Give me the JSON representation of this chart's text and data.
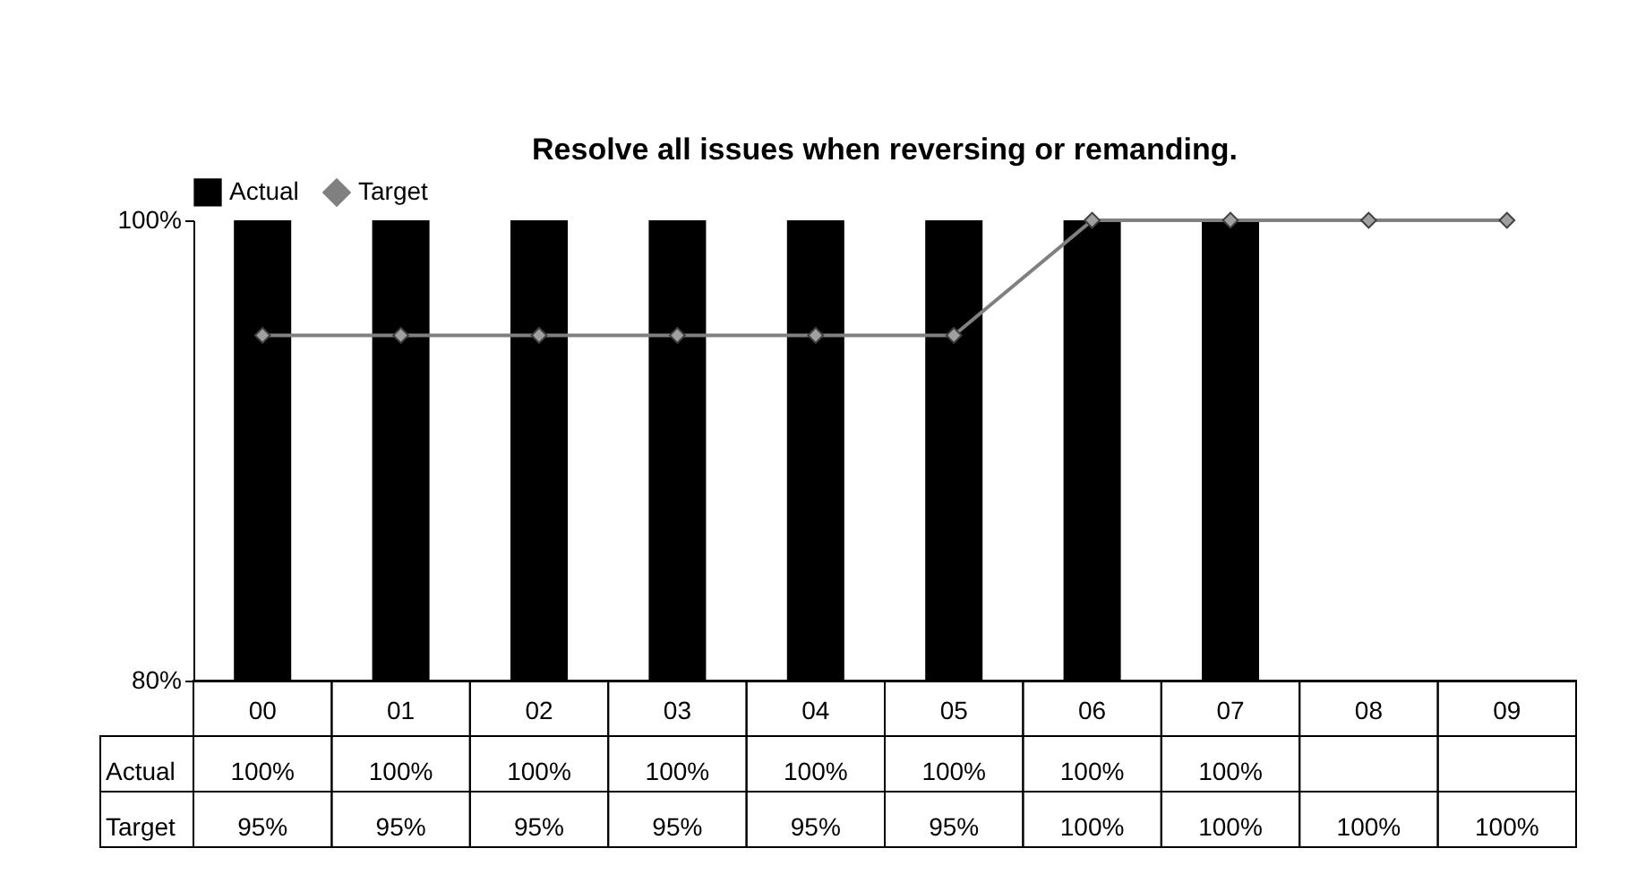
{
  "chart_data": {
    "type": "bar",
    "title": "Resolve all issues when reversing or remanding.",
    "categories": [
      "00",
      "01",
      "02",
      "03",
      "04",
      "05",
      "06",
      "07",
      "08",
      "09"
    ],
    "series": [
      {
        "name": "Actual",
        "type": "bar",
        "color": "#000000",
        "values": [
          100,
          100,
          100,
          100,
          100,
          100,
          100,
          100,
          null,
          null
        ],
        "value_labels": [
          "100%",
          "100%",
          "100%",
          "100%",
          "100%",
          "100%",
          "100%",
          "100%",
          null,
          null
        ]
      },
      {
        "name": "Target",
        "type": "line",
        "color": "#808080",
        "marker": "diamond",
        "values": [
          95,
          95,
          95,
          95,
          95,
          95,
          100,
          100,
          100,
          100
        ],
        "value_labels": [
          "95%",
          "95%",
          "95%",
          "95%",
          "95%",
          "95%",
          "100%",
          "100%",
          "100%",
          "100%"
        ]
      }
    ],
    "ylim": [
      80,
      100
    ],
    "yticks": [
      {
        "value": 80,
        "label": "80%"
      },
      {
        "value": 100,
        "label": "100%"
      }
    ],
    "grid": false,
    "legend": "top"
  }
}
